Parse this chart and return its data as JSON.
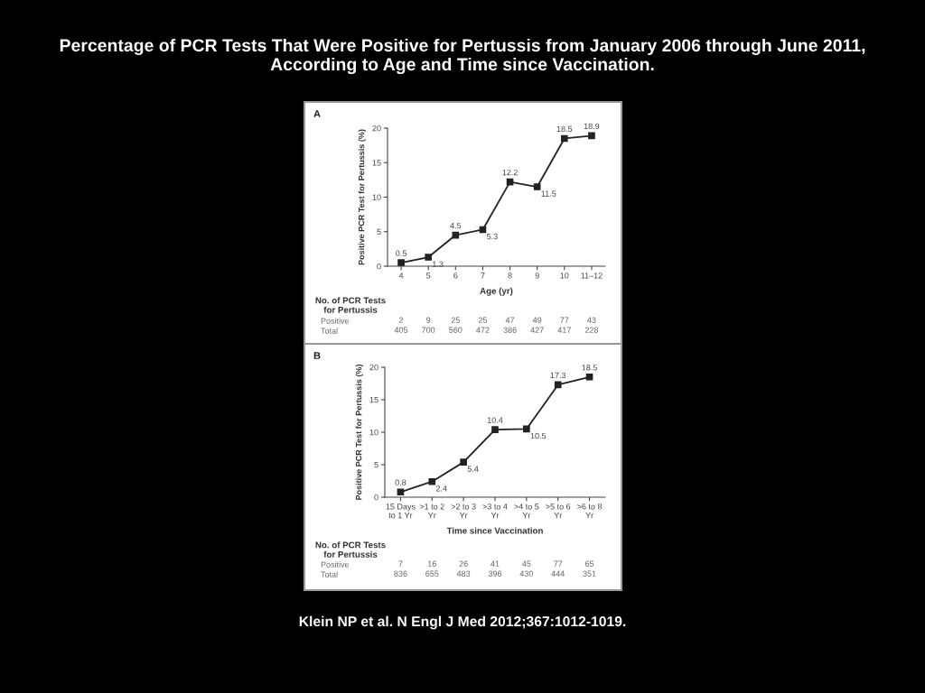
{
  "chart_data": [
    {
      "type": "other",
      "title": "Percentage of PCR Tests That Were Positive for Pertussis from January 2006 through June 2011,\nAccording to Age and Time since Vaccination.",
      "annotations": [
        "Klein NP et al. N Engl J Med 2012;367:1012-1019."
      ]
    },
    {
      "type": "line",
      "title": "A",
      "categories": [
        "4",
        "5",
        "6",
        "7",
        "8",
        "9",
        "10",
        "11–12"
      ],
      "values": [
        0.5,
        1.3,
        4.5,
        5.3,
        12.2,
        11.5,
        18.5,
        18.9
      ],
      "color": "#222222",
      "xlabel": "Age (yr)",
      "ylabel": "Positive PCR Test for Pertussis (%)",
      "ylim": [
        0,
        20
      ],
      "yticks": [
        0,
        5,
        10,
        15,
        20
      ],
      "marker": "square",
      "line_style": "solid",
      "data_labels": true
    },
    {
      "type": "heatmap",
      "title": "No. of PCR Tests\nfor Pertussis",
      "categories": [
        null,
        null,
        null,
        null,
        null,
        null,
        null,
        null
      ],
      "y_categories": [
        "Positive",
        "Total"
      ],
      "cells": [
        [
          2,
          9,
          25,
          25,
          47,
          49,
          77,
          43
        ],
        [
          405,
          700,
          560,
          472,
          386,
          427,
          417,
          228
        ]
      ],
      "data_labels": true
    },
    {
      "type": "line",
      "title": "B",
      "categories": [
        "15 Days\nto 1 Yr",
        ">1 to 2\nYr",
        ">2 to 3\nYr",
        ">3 to 4\nYr",
        ">4 to 5\nYr",
        ">5 to 6\nYr",
        ">6 to 8\nYr"
      ],
      "values": [
        0.8,
        2.4,
        5.4,
        10.4,
        10.5,
        17.3,
        18.5
      ],
      "color": "#222222",
      "xlabel": "Time since Vaccination",
      "ylabel": "Positive PCR Test for Pertussis (%)",
      "ylim": [
        0,
        20
      ],
      "yticks": [
        0,
        5,
        10,
        15,
        20
      ],
      "marker": "square",
      "line_style": "solid",
      "data_labels": true
    },
    {
      "type": "heatmap",
      "title": "No. of PCR Tests\nfor Pertussis",
      "categories": [
        null,
        null,
        null,
        null,
        null,
        null,
        null
      ],
      "y_categories": [
        "Positive",
        "Total"
      ],
      "cells": [
        [
          7,
          16,
          26,
          41,
          45,
          77,
          65
        ],
        [
          836,
          655,
          483,
          396,
          430,
          444,
          351
        ]
      ],
      "data_labels": true
    }
  ]
}
